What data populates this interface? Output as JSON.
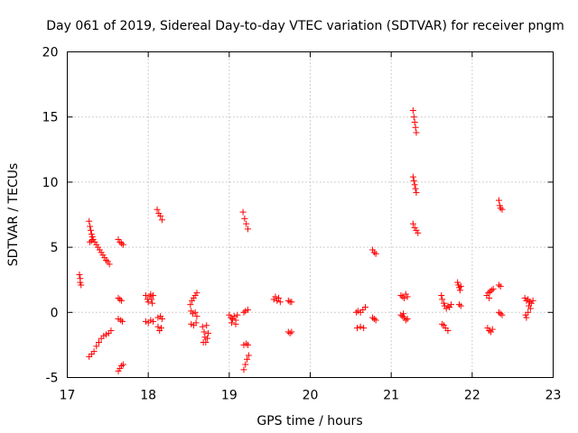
{
  "chart_data": {
    "type": "scatter",
    "title": "Day 061 of 2019, Sidereal Day-to-day VTEC variation (SDTVAR) for receiver pngm",
    "xlabel": "GPS time / hours",
    "ylabel": "SDTVAR / TECUs",
    "xlim": [
      17,
      23
    ],
    "ylim": [
      -5,
      20
    ],
    "xticks": [
      "17",
      "18",
      "19",
      "20",
      "21",
      "22",
      "23"
    ],
    "yticks": [
      "-5",
      "0",
      "5",
      "10",
      "15",
      "20"
    ],
    "grid": true,
    "marker": "+",
    "marker_color": "#ff0000",
    "series": [
      {
        "name": "SDTVAR",
        "points": [
          [
            17.15,
            2.9
          ],
          [
            17.16,
            2.6
          ],
          [
            17.16,
            2.3
          ],
          [
            17.17,
            2.1
          ],
          [
            17.27,
            7.0
          ],
          [
            17.28,
            6.6
          ],
          [
            17.29,
            6.3
          ],
          [
            17.3,
            6.0
          ],
          [
            17.31,
            5.8
          ],
          [
            17.32,
            5.6
          ],
          [
            17.34,
            5.4
          ],
          [
            17.36,
            5.2
          ],
          [
            17.38,
            5.0
          ],
          [
            17.4,
            4.8
          ],
          [
            17.42,
            4.6
          ],
          [
            17.44,
            4.4
          ],
          [
            17.46,
            4.2
          ],
          [
            17.48,
            4.0
          ],
          [
            17.5,
            3.9
          ],
          [
            17.52,
            3.7
          ],
          [
            17.28,
            5.4
          ],
          [
            17.3,
            5.5
          ],
          [
            17.27,
            -3.4
          ],
          [
            17.3,
            -3.2
          ],
          [
            17.33,
            -3.0
          ],
          [
            17.36,
            -2.6
          ],
          [
            17.39,
            -2.3
          ],
          [
            17.42,
            -2.0
          ],
          [
            17.45,
            -1.8
          ],
          [
            17.48,
            -1.7
          ],
          [
            17.51,
            -1.6
          ],
          [
            17.54,
            -1.4
          ],
          [
            17.63,
            5.6
          ],
          [
            17.65,
            5.4
          ],
          [
            17.67,
            5.3
          ],
          [
            17.69,
            5.2
          ],
          [
            17.63,
            1.1
          ],
          [
            17.65,
            1.0
          ],
          [
            17.67,
            0.9
          ],
          [
            17.63,
            -0.5
          ],
          [
            17.66,
            -0.6
          ],
          [
            17.68,
            -0.7
          ],
          [
            17.63,
            -4.5
          ],
          [
            17.65,
            -4.3
          ],
          [
            17.67,
            -4.1
          ],
          [
            17.69,
            -4.0
          ],
          [
            17.97,
            1.3
          ],
          [
            17.99,
            1.0
          ],
          [
            18.0,
            0.8
          ],
          [
            18.02,
            1.2
          ],
          [
            18.04,
            1.0
          ],
          [
            18.05,
            0.7
          ],
          [
            18.06,
            1.3
          ],
          [
            18.03,
            1.4
          ],
          [
            17.97,
            -0.7
          ],
          [
            18.0,
            -0.8
          ],
          [
            18.03,
            -0.6
          ],
          [
            18.06,
            -0.7
          ],
          [
            18.11,
            7.9
          ],
          [
            18.13,
            7.6
          ],
          [
            18.15,
            7.4
          ],
          [
            18.17,
            7.1
          ],
          [
            18.12,
            -0.4
          ],
          [
            18.15,
            -0.3
          ],
          [
            18.17,
            -0.5
          ],
          [
            18.12,
            -1.1
          ],
          [
            18.14,
            -1.4
          ],
          [
            18.16,
            -1.2
          ],
          [
            18.52,
            0.6
          ],
          [
            18.54,
            0.9
          ],
          [
            18.56,
            1.1
          ],
          [
            18.58,
            1.3
          ],
          [
            18.6,
            1.5
          ],
          [
            18.53,
            0.1
          ],
          [
            18.55,
            -0.1
          ],
          [
            18.58,
            0.0
          ],
          [
            18.6,
            -0.3
          ],
          [
            18.53,
            -0.9
          ],
          [
            18.56,
            -1.0
          ],
          [
            18.59,
            -0.8
          ],
          [
            18.67,
            -1.1
          ],
          [
            18.69,
            -1.5
          ],
          [
            18.7,
            -1.9
          ],
          [
            18.71,
            -2.3
          ],
          [
            18.72,
            -1.0
          ],
          [
            18.73,
            -2.0
          ],
          [
            18.74,
            -1.6
          ],
          [
            18.68,
            -2.3
          ],
          [
            19.0,
            -0.2
          ],
          [
            19.02,
            -0.4
          ],
          [
            19.04,
            -0.5
          ],
          [
            19.06,
            -0.3
          ],
          [
            19.08,
            -0.6
          ],
          [
            19.1,
            -0.2
          ],
          [
            19.03,
            -0.8
          ],
          [
            19.08,
            -0.9
          ],
          [
            19.17,
            7.7
          ],
          [
            19.19,
            7.2
          ],
          [
            19.21,
            6.8
          ],
          [
            19.23,
            6.4
          ],
          [
            19.18,
            0.0
          ],
          [
            19.2,
            0.1
          ],
          [
            19.23,
            0.2
          ],
          [
            19.18,
            -2.5
          ],
          [
            19.21,
            -2.4
          ],
          [
            19.23,
            -2.5
          ],
          [
            19.18,
            -4.4
          ],
          [
            19.2,
            -4.0
          ],
          [
            19.22,
            -3.6
          ],
          [
            19.24,
            -3.3
          ],
          [
            19.55,
            1.0
          ],
          [
            19.57,
            1.2
          ],
          [
            19.59,
            0.9
          ],
          [
            19.61,
            1.1
          ],
          [
            19.63,
            0.8
          ],
          [
            19.73,
            0.9
          ],
          [
            19.75,
            0.8
          ],
          [
            19.77,
            0.8
          ],
          [
            19.73,
            -1.5
          ],
          [
            19.75,
            -1.6
          ],
          [
            19.77,
            -1.5
          ],
          [
            20.57,
            0.0
          ],
          [
            20.59,
            0.1
          ],
          [
            20.62,
            0.0
          ],
          [
            20.65,
            0.2
          ],
          [
            20.68,
            0.4
          ],
          [
            20.58,
            -1.2
          ],
          [
            20.62,
            -1.1
          ],
          [
            20.66,
            -1.2
          ],
          [
            20.77,
            4.8
          ],
          [
            20.79,
            4.6
          ],
          [
            20.81,
            4.5
          ],
          [
            20.77,
            -0.4
          ],
          [
            20.79,
            -0.5
          ],
          [
            20.81,
            -0.6
          ],
          [
            21.12,
            1.3
          ],
          [
            21.14,
            1.2
          ],
          [
            21.16,
            1.1
          ],
          [
            21.18,
            1.4
          ],
          [
            21.2,
            1.2
          ],
          [
            21.12,
            -0.2
          ],
          [
            21.14,
            -0.3
          ],
          [
            21.16,
            -0.4
          ],
          [
            21.18,
            -0.6
          ],
          [
            21.2,
            -0.5
          ],
          [
            21.15,
            -0.1
          ],
          [
            21.27,
            15.5
          ],
          [
            21.28,
            15.0
          ],
          [
            21.29,
            14.6
          ],
          [
            21.3,
            14.2
          ],
          [
            21.31,
            13.8
          ],
          [
            21.27,
            10.4
          ],
          [
            21.28,
            10.1
          ],
          [
            21.29,
            9.8
          ],
          [
            21.3,
            9.5
          ],
          [
            21.31,
            9.2
          ],
          [
            21.27,
            6.8
          ],
          [
            21.29,
            6.5
          ],
          [
            21.31,
            6.3
          ],
          [
            21.33,
            6.1
          ],
          [
            21.62,
            1.3
          ],
          [
            21.63,
            1.0
          ],
          [
            21.65,
            0.7
          ],
          [
            21.66,
            0.5
          ],
          [
            21.68,
            0.3
          ],
          [
            21.63,
            -0.9
          ],
          [
            21.65,
            -1.0
          ],
          [
            21.67,
            -1.2
          ],
          [
            21.7,
            -1.4
          ],
          [
            21.7,
            0.5
          ],
          [
            21.72,
            0.4
          ],
          [
            21.74,
            0.6
          ],
          [
            21.82,
            2.3
          ],
          [
            21.83,
            2.1
          ],
          [
            21.84,
            1.9
          ],
          [
            21.85,
            1.7
          ],
          [
            21.86,
            2.0
          ],
          [
            21.84,
            0.6
          ],
          [
            21.86,
            0.5
          ],
          [
            22.18,
            1.3
          ],
          [
            22.2,
            1.5
          ],
          [
            22.22,
            1.6
          ],
          [
            22.24,
            1.7
          ],
          [
            22.26,
            1.8
          ],
          [
            22.21,
            1.1
          ],
          [
            22.19,
            -1.2
          ],
          [
            22.21,
            -1.4
          ],
          [
            22.23,
            -1.5
          ],
          [
            22.25,
            -1.3
          ],
          [
            22.33,
            8.6
          ],
          [
            22.34,
            8.2
          ],
          [
            22.35,
            8.0
          ],
          [
            22.37,
            7.9
          ],
          [
            22.33,
            2.1
          ],
          [
            22.35,
            2.0
          ],
          [
            22.33,
            0.0
          ],
          [
            22.35,
            -0.1
          ],
          [
            22.37,
            -0.2
          ],
          [
            22.65,
            1.1
          ],
          [
            22.67,
            0.9
          ],
          [
            22.69,
            1.0
          ],
          [
            22.71,
            0.8
          ],
          [
            22.73,
            0.7
          ],
          [
            22.75,
            0.9
          ],
          [
            22.7,
            0.5
          ],
          [
            22.72,
            0.3
          ],
          [
            22.66,
            -0.2
          ],
          [
            22.67,
            -0.4
          ],
          [
            22.69,
            0.0
          ]
        ]
      }
    ]
  }
}
